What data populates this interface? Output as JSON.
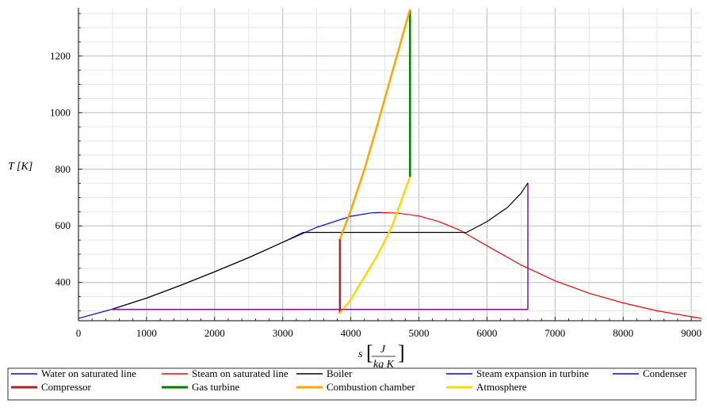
{
  "chart_data": {
    "type": "line",
    "title": "",
    "xlabel": "s",
    "xlabel_unit_num": "J",
    "xlabel_unit_den": "kg K",
    "ylabel": "T [K]",
    "xlim": [
      0,
      9150
    ],
    "ylim": [
      265,
      1370
    ],
    "xticks": [
      0,
      1000,
      2000,
      3000,
      4000,
      5000,
      6000,
      7000,
      8000,
      9000
    ],
    "yticks": [
      400,
      600,
      800,
      1000,
      1200
    ],
    "grid": true,
    "legend_position": "bottom",
    "series": [
      {
        "name": "Water on saturated line",
        "color": "#0000ff",
        "width": 1.2,
        "points": [
          [
            0,
            273
          ],
          [
            500,
            306
          ],
          [
            1000,
            345
          ],
          [
            1500,
            390
          ],
          [
            2000,
            438
          ],
          [
            2500,
            488
          ],
          [
            3000,
            542
          ],
          [
            3500,
            595
          ],
          [
            4000,
            634
          ],
          [
            4300,
            646
          ],
          [
            4430,
            647
          ]
        ]
      },
      {
        "name": "Steam on saturated line",
        "color": "#ff0000",
        "width": 1.2,
        "points": [
          [
            4430,
            647
          ],
          [
            4700,
            645
          ],
          [
            5000,
            635
          ],
          [
            5300,
            615
          ],
          [
            5600,
            585
          ],
          [
            6000,
            530
          ],
          [
            6500,
            462
          ],
          [
            7000,
            406
          ],
          [
            7500,
            362
          ],
          [
            8000,
            328
          ],
          [
            8500,
            300
          ],
          [
            9150,
            273
          ]
        ]
      },
      {
        "name": "Boiler",
        "color": "#000000",
        "width": 1.2,
        "points": [
          [
            500,
            306
          ],
          [
            1000,
            345
          ],
          [
            1500,
            390
          ],
          [
            2000,
            438
          ],
          [
            2500,
            488
          ],
          [
            3000,
            542
          ],
          [
            3300,
            577
          ],
          [
            5700,
            577
          ],
          [
            6000,
            615
          ],
          [
            6300,
            665
          ],
          [
            6500,
            715
          ],
          [
            6600,
            752
          ]
        ]
      },
      {
        "name": "Steam expansion in turbine",
        "color": "#0000ff",
        "width": 1.2,
        "points": [
          [
            6600,
            752
          ],
          [
            6600,
            305
          ]
        ]
      },
      {
        "name": "Condenser",
        "color": "#0000ff",
        "width": 1.2,
        "points": [
          [
            500,
            305
          ],
          [
            6600,
            305
          ]
        ]
      },
      {
        "name": "Compressor",
        "color": "#b22222",
        "width": 2.5,
        "points": [
          [
            3840,
            291
          ],
          [
            3840,
            553
          ]
        ]
      },
      {
        "name": "Gas turbine",
        "color": "#008000",
        "width": 2.5,
        "points": [
          [
            4870,
            1365
          ],
          [
            4870,
            773
          ]
        ]
      },
      {
        "name": "Combustion chamber",
        "color": "#ffa500",
        "width": 2.5,
        "points": [
          [
            3840,
            553
          ],
          [
            4000,
            655
          ],
          [
            4200,
            800
          ],
          [
            4400,
            965
          ],
          [
            4600,
            1135
          ],
          [
            4870,
            1365
          ]
        ]
      },
      {
        "name": "Atmosphere",
        "color": "#ffd700",
        "width": 2.5,
        "points": [
          [
            3840,
            291
          ],
          [
            4000,
            340
          ],
          [
            4200,
            420
          ],
          [
            4400,
            500
          ],
          [
            4600,
            595
          ],
          [
            4870,
            773
          ]
        ]
      }
    ],
    "overlay": [
      {
        "color": "#800080",
        "width": 1.2,
        "points": [
          [
            6600,
            752
          ],
          [
            6600,
            305
          ]
        ]
      },
      {
        "color": "#800080",
        "width": 1.2,
        "points": [
          [
            500,
            305
          ],
          [
            6600,
            305
          ]
        ]
      }
    ]
  }
}
